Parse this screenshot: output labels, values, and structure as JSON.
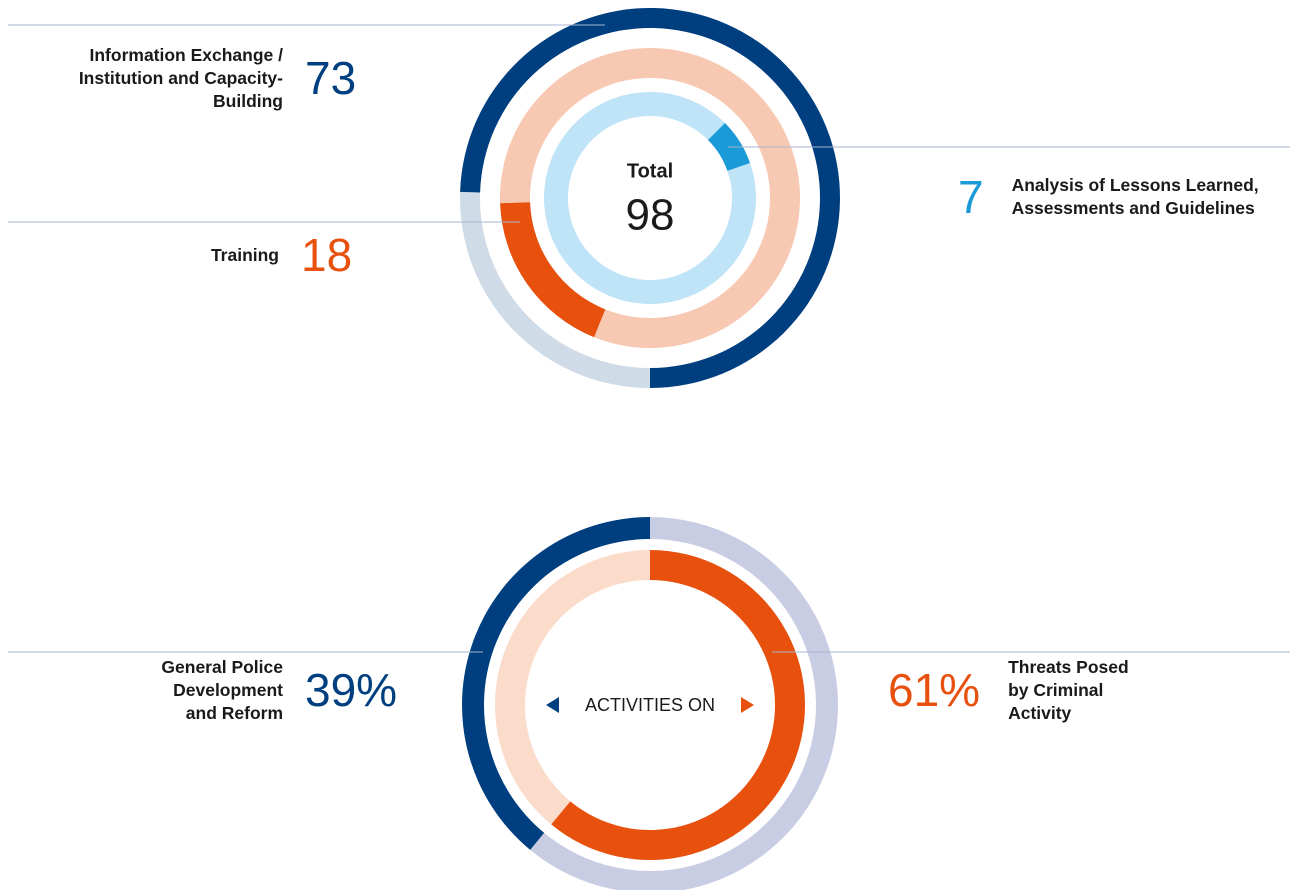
{
  "chart_data": [
    {
      "type": "donut",
      "center_label": "Total",
      "total": 98,
      "series": [
        {
          "name": "Information Exchange / Institution and Capacity-Building",
          "color": "#003f7f",
          "track_color": "#cfdbe6",
          "values": [
            73
          ]
        },
        {
          "name": "Training",
          "color": "#e8500e",
          "track_color": "#f7c9b3",
          "values": [
            18
          ]
        },
        {
          "name": "Analysis of Lessons Learned, Assessments and Guidelines",
          "color": "#1a9ad6",
          "track_color": "#bfe3f7",
          "values": [
            7
          ]
        }
      ]
    },
    {
      "type": "donut",
      "center_label": "ACTIVITIES ON",
      "series": [
        {
          "name": "General Police Development and Reform",
          "color": "#003f7f",
          "track_color": "#c9cde3",
          "values": [
            39
          ],
          "value_labels": [
            "39%"
          ]
        },
        {
          "name": "Threats Posed by Criminal Activity",
          "color": "#e8500e",
          "track_color": "#fbdccb",
          "values": [
            61
          ],
          "value_labels": [
            "61%"
          ]
        }
      ]
    }
  ]
}
